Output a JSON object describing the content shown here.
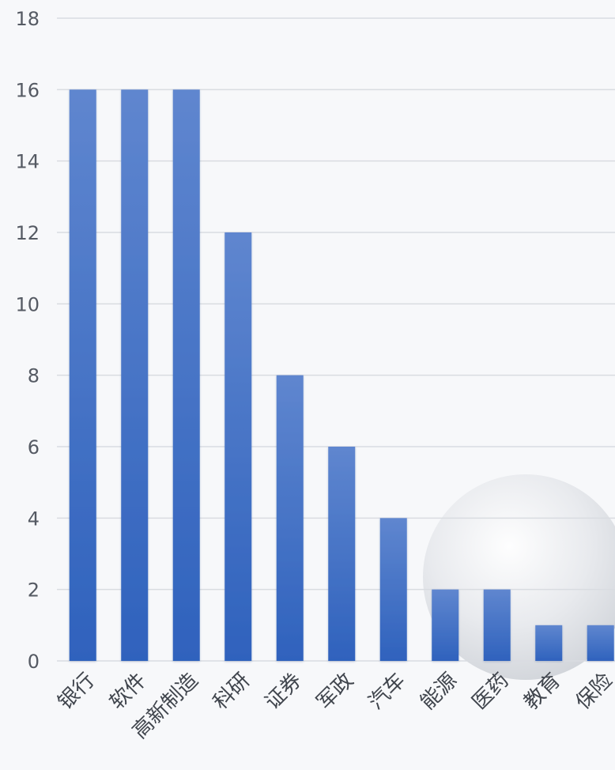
{
  "chart_data": {
    "type": "bar",
    "title": "",
    "xlabel": "",
    "ylabel": "",
    "categories": [
      "银行",
      "软件",
      "高新制造",
      "科研",
      "证券",
      "军政",
      "汽车",
      "能源",
      "医药",
      "教育",
      "保险"
    ],
    "values": [
      16,
      16,
      16,
      12,
      8,
      6,
      4,
      2,
      2,
      1,
      1
    ],
    "ylim": [
      0,
      18
    ],
    "yticks": [
      0,
      2,
      4,
      6,
      8,
      10,
      12,
      14,
      16,
      18
    ],
    "grid": true,
    "legend": "none",
    "colors": {
      "bar_top": "#5f86cf",
      "bar_bottom": "#2f62bd",
      "grid": "#d9dce1",
      "text": "#555a63",
      "background": "#f7f8fa"
    }
  }
}
